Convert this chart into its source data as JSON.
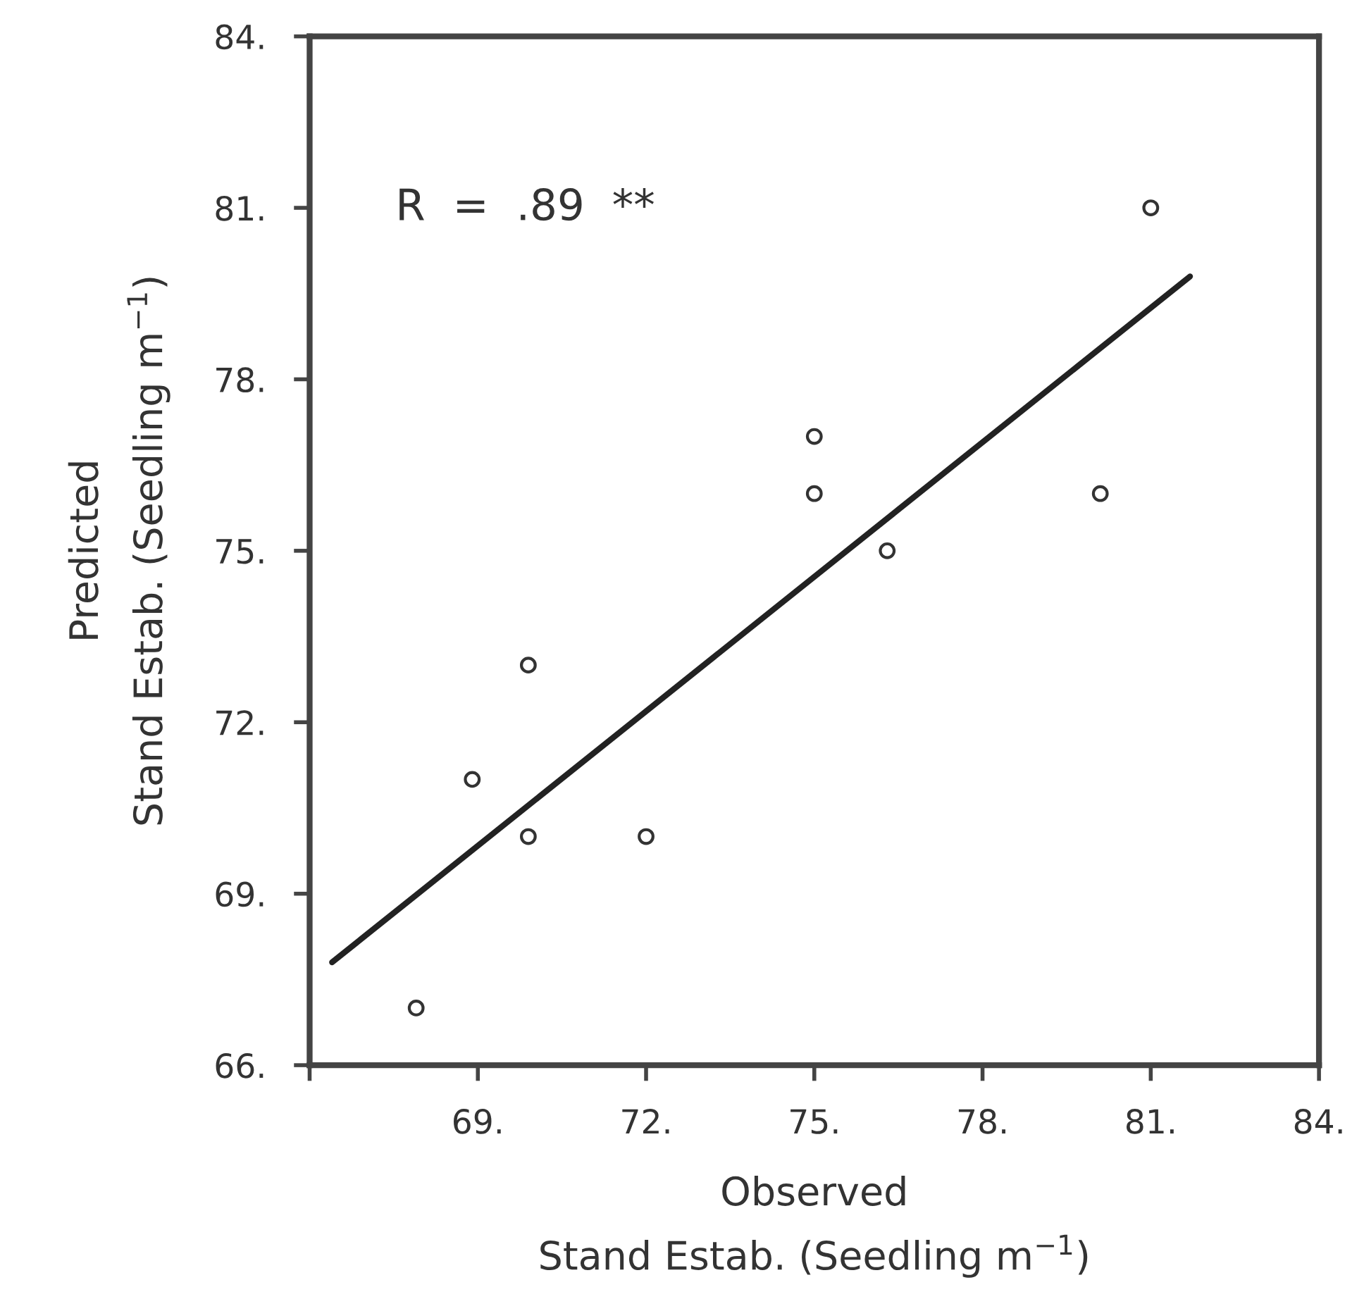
{
  "chart_data": {
    "type": "scatter",
    "xlabel": "Observed\nStand Estab. (Seedling m$^{−1}$)",
    "ylabel": "Predicted\nStand Estab. (Seedling m$^{−1}$)",
    "x": [
      67.9,
      68.9,
      69.9,
      69.9,
      72.0,
      75.0,
      75.0,
      76.3,
      80.1,
      81.0
    ],
    "series": [
      {
        "marker": "circle",
        "color": "#333333",
        "values": [
          67,
          71,
          70,
          73,
          70,
          77,
          76,
          75,
          76,
          81
        ]
      },
      {
        "type": "line",
        "line_style": "solid",
        "color": "#222222",
        "x": [
          66.4,
          81.7
        ],
        "values": [
          67.8,
          79.8
        ]
      }
    ],
    "grid": false,
    "legend": false,
    "xlim": [
      66,
      84
    ],
    "ylim": [
      66,
      84
    ],
    "xticks": [
      {
        "value": 66,
        "label": null
      },
      {
        "value": 69,
        "label": "69."
      },
      {
        "value": 72,
        "label": "72."
      },
      {
        "value": 75,
        "label": "75."
      },
      {
        "value": 78,
        "label": "78."
      },
      {
        "value": 81,
        "label": "81."
      },
      {
        "value": 84,
        "label": "84."
      }
    ],
    "yticks": [
      {
        "value": 66,
        "label": "66."
      },
      {
        "value": 69,
        "label": "69."
      },
      {
        "value": 72,
        "label": "72."
      },
      {
        "value": 75,
        "label": "75."
      },
      {
        "value": 78,
        "label": "78."
      },
      {
        "value": 81,
        "label": "81."
      },
      {
        "value": 84,
        "label": "84."
      }
    ],
    "annotations": [
      "R  =  .89  **"
    ]
  }
}
